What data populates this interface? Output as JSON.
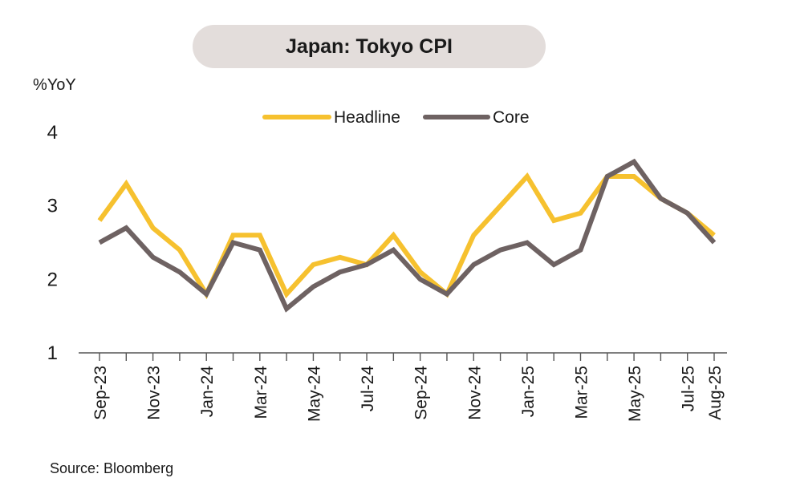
{
  "chart_data": {
    "type": "line",
    "title": "Japan: Tokyo CPI",
    "ylabel": "%YoY",
    "xlabel": "",
    "source": "Source: Bloomberg",
    "ylim": [
      1,
      4
    ],
    "yticks": [
      1,
      2,
      3,
      4
    ],
    "x": [
      "Sep-23",
      "Oct-23",
      "Nov-23",
      "Dec-23",
      "Jan-24",
      "Feb-24",
      "Mar-24",
      "Apr-24",
      "May-24",
      "Jun-24",
      "Jul-24",
      "Aug-24",
      "Sep-24",
      "Oct-24",
      "Nov-24",
      "Dec-24",
      "Jan-25",
      "Feb-25",
      "Mar-25",
      "Apr-25",
      "May-25",
      "Jun-25",
      "Jul-25",
      "Aug-25"
    ],
    "x_tick_labels": [
      "Sep-23",
      "",
      "Nov-23",
      "",
      "Jan-24",
      "",
      "Mar-24",
      "",
      "May-24",
      "",
      "Jul-24",
      "",
      "Sep-24",
      "",
      "Nov-24",
      "",
      "Jan-25",
      "",
      "Mar-25",
      "",
      "May-25",
      "",
      "Jul-25",
      "Aug-25"
    ],
    "legend_position": "top-center",
    "grid": false,
    "series": [
      {
        "name": "Headline",
        "color": "#f6c12f",
        "values": [
          2.8,
          3.3,
          2.7,
          2.4,
          1.8,
          2.6,
          2.6,
          1.8,
          2.2,
          2.3,
          2.2,
          2.6,
          2.1,
          1.8,
          2.6,
          3.0,
          3.4,
          2.8,
          2.9,
          3.4,
          3.4,
          3.1,
          2.9,
          2.6
        ]
      },
      {
        "name": "Core",
        "color": "#6e6262",
        "values": [
          2.5,
          2.7,
          2.3,
          2.1,
          1.8,
          2.5,
          2.4,
          1.6,
          1.9,
          2.1,
          2.2,
          2.4,
          2.0,
          1.8,
          2.2,
          2.4,
          2.5,
          2.2,
          2.4,
          3.4,
          3.6,
          3.1,
          2.9,
          2.5
        ]
      }
    ]
  }
}
